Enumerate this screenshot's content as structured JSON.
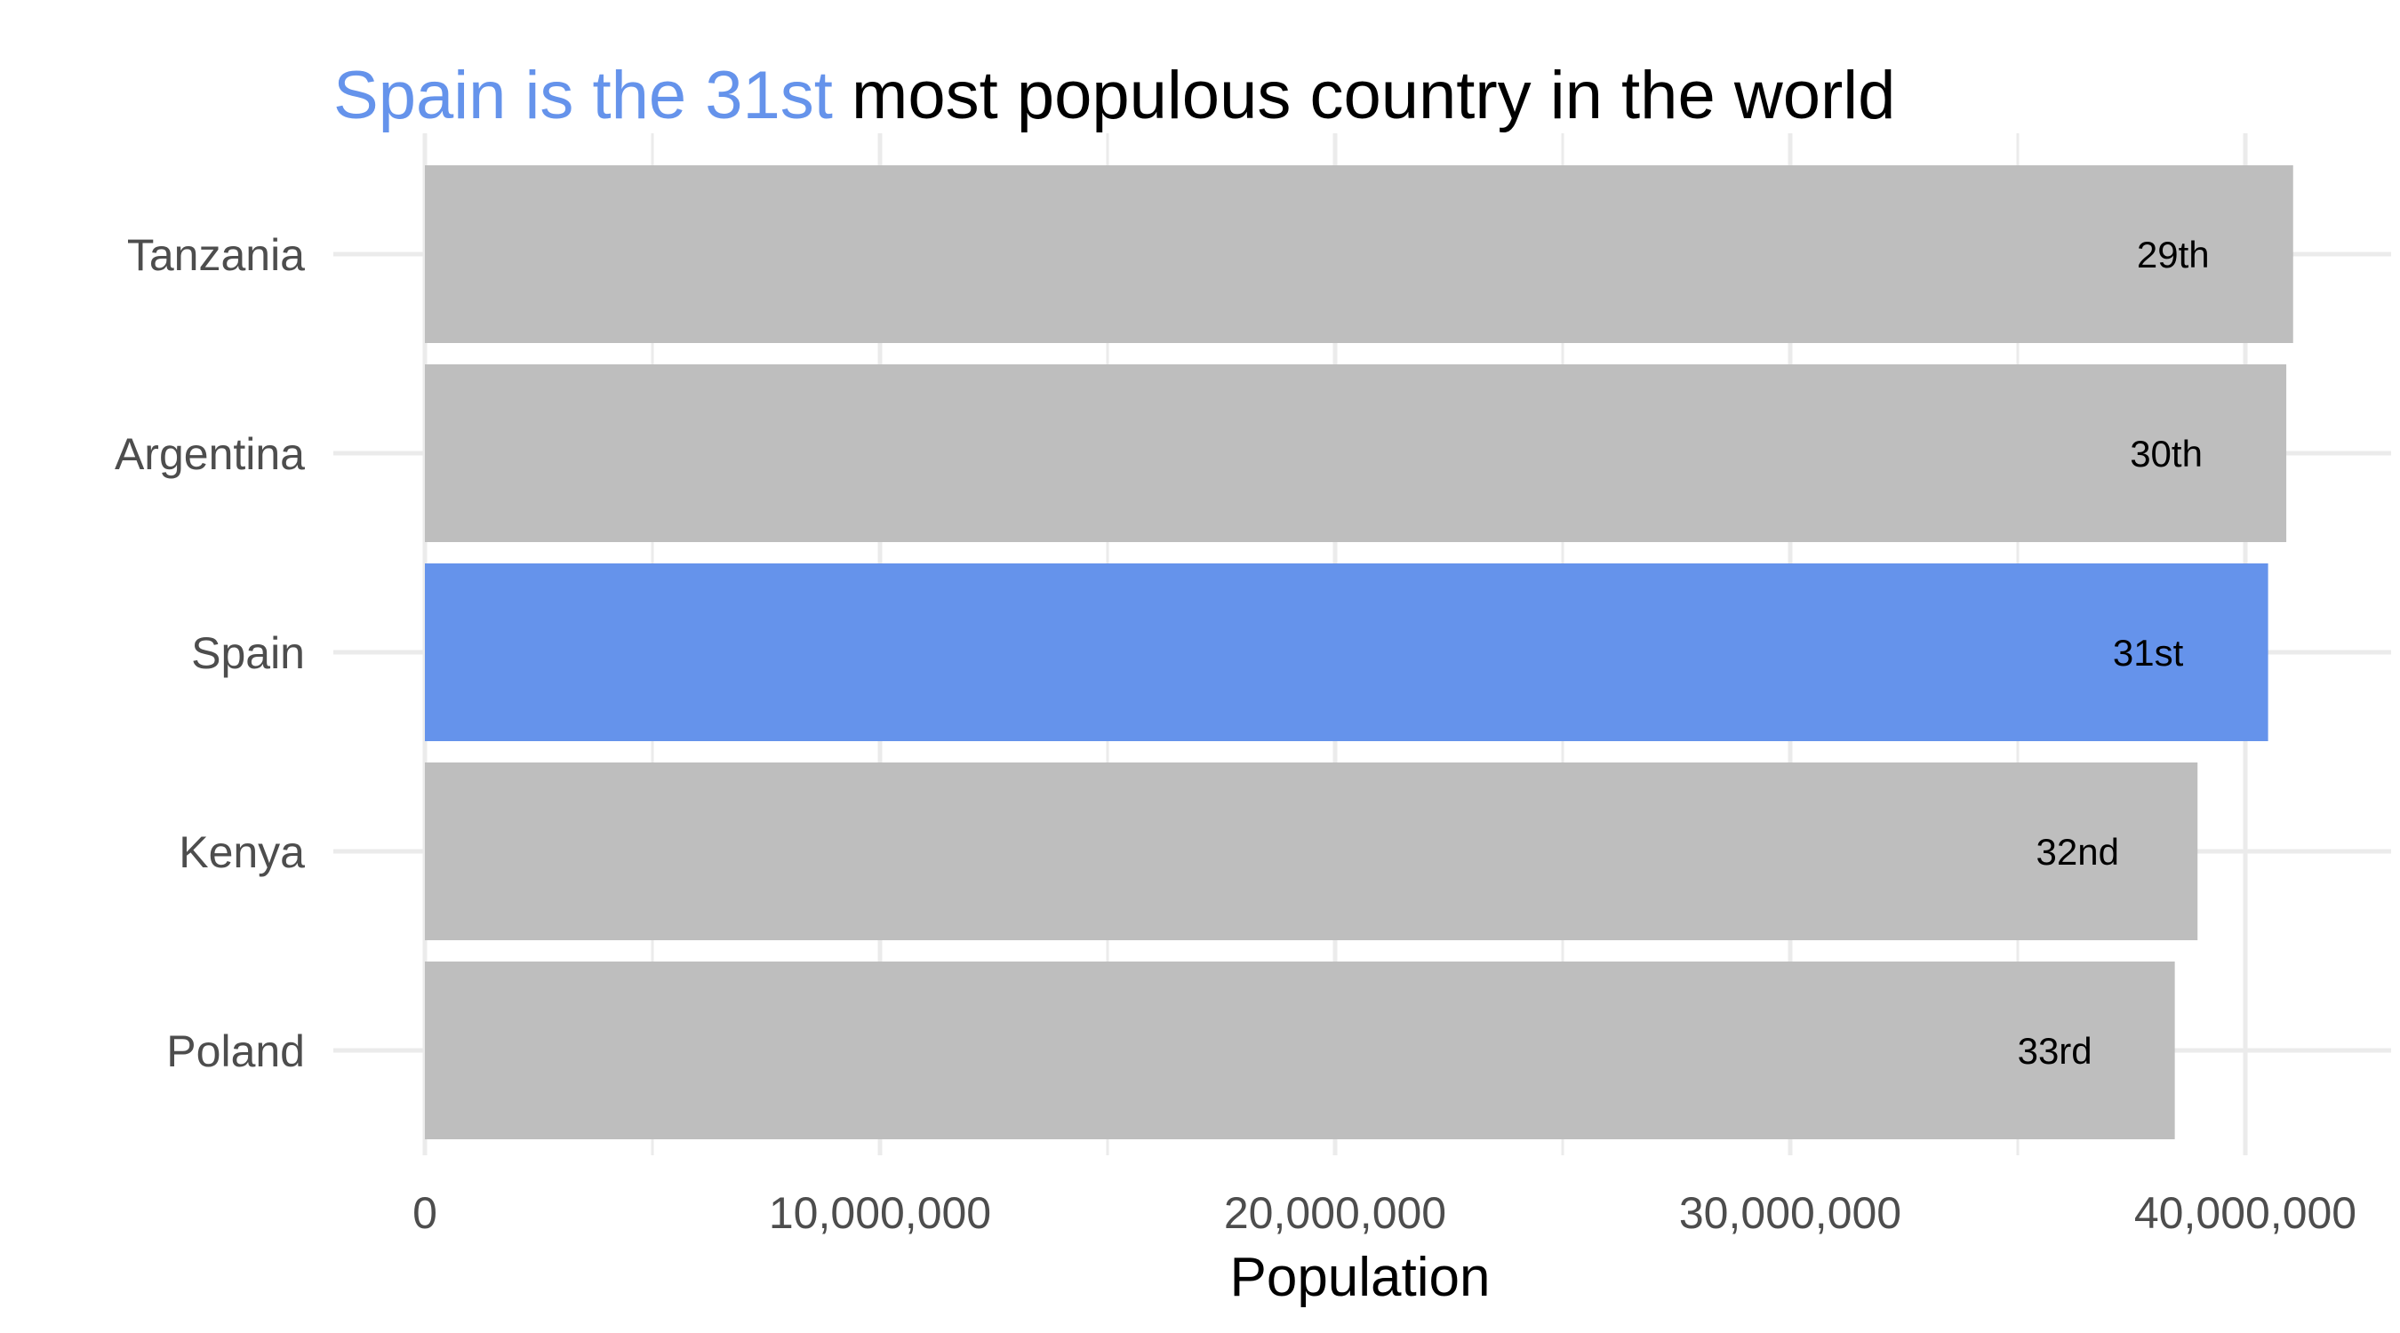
{
  "chart_data": {
    "type": "bar",
    "orientation": "horizontal",
    "title": {
      "highlight": "Spain is the 31st",
      "rest": " most populous country in the world"
    },
    "xlabel": "Population",
    "ylabel": "",
    "xlim": [
      0,
      42500000
    ],
    "x_ticks": [
      0,
      10000000,
      20000000,
      30000000,
      40000000
    ],
    "x_tick_labels": [
      "0",
      "10,000,000",
      "20,000,000",
      "30,000,000",
      "40,000,000"
    ],
    "categories": [
      "Tanzania",
      "Argentina",
      "Spain",
      "Kenya",
      "Poland"
    ],
    "values": [
      41050000,
      40900000,
      40500000,
      38950000,
      38450000
    ],
    "labels": [
      "29th",
      "30th",
      "31st",
      "32nd",
      "33rd"
    ],
    "highlight_category": "Spain",
    "grid": true,
    "legend": "none"
  },
  "colors": {
    "highlight": "#6593EB",
    "bar": "#BEBEBE",
    "grid": "#EBEBEB",
    "title_rest": "#000000"
  }
}
